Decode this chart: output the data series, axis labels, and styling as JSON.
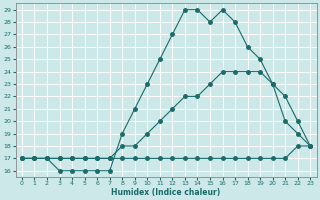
{
  "xlabel": "Humidex (Indice chaleur)",
  "bg_color": "#cce8e8",
  "line_color": "#1a6b6b",
  "grid_color": "#b0d8d8",
  "xlim": [
    -0.5,
    23.5
  ],
  "ylim": [
    15.5,
    29.5
  ],
  "xticks": [
    0,
    1,
    2,
    3,
    4,
    5,
    6,
    7,
    8,
    9,
    10,
    11,
    12,
    13,
    14,
    15,
    16,
    17,
    18,
    19,
    20,
    21,
    22,
    23
  ],
  "yticks": [
    16,
    17,
    18,
    19,
    20,
    21,
    22,
    23,
    24,
    25,
    26,
    27,
    28,
    29
  ],
  "line1_x": [
    0,
    1,
    2,
    3,
    4,
    5,
    6,
    7,
    8,
    9,
    10,
    11,
    12,
    13,
    14,
    15,
    16,
    17,
    18,
    19,
    20,
    21,
    22,
    23
  ],
  "line1_y": [
    17,
    17,
    17,
    16,
    16,
    16,
    16,
    16,
    19,
    21,
    23,
    25,
    27,
    29,
    29,
    28,
    29,
    28,
    26,
    25,
    23,
    20,
    19,
    18
  ],
  "line2_x": [
    0,
    1,
    2,
    3,
    4,
    5,
    6,
    7,
    8,
    9,
    10,
    11,
    12,
    13,
    14,
    15,
    16,
    17,
    18,
    19,
    20,
    21,
    22,
    23
  ],
  "line2_y": [
    17,
    17,
    17,
    17,
    17,
    17,
    17,
    17,
    17,
    17,
    17,
    17,
    17,
    17,
    17,
    17,
    17,
    17,
    17,
    17,
    17,
    17,
    18,
    18
  ],
  "line3_x": [
    0,
    1,
    2,
    3,
    4,
    5,
    6,
    7,
    8,
    9,
    10,
    11,
    12,
    13,
    14,
    15,
    16,
    17,
    18,
    19,
    20,
    21,
    22,
    23
  ],
  "line3_y": [
    17,
    17,
    17,
    17,
    17,
    17,
    17,
    17,
    18,
    18,
    19,
    20,
    21,
    22,
    22,
    23,
    24,
    24,
    24,
    24,
    23,
    22,
    20,
    18
  ]
}
